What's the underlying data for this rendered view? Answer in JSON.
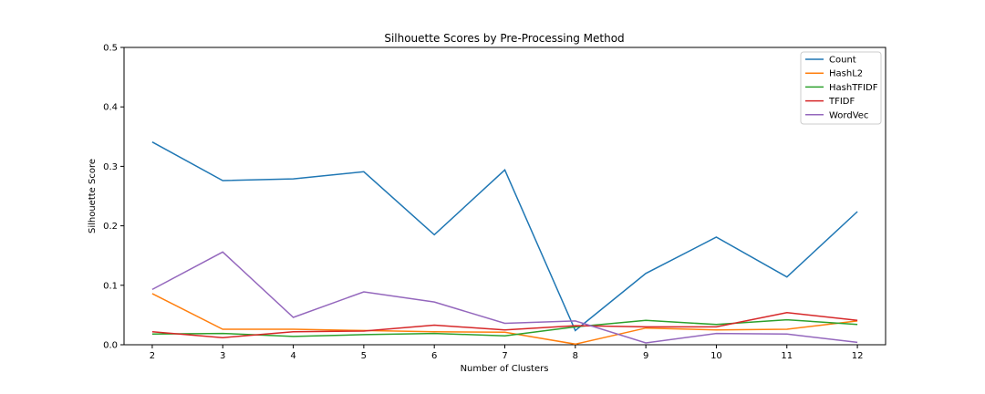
{
  "chart_data": {
    "type": "line",
    "title": "Silhouette Scores by Pre-Processing Method",
    "xlabel": "Number of Clusters",
    "ylabel": "Silhouette Score",
    "x": [
      2,
      3,
      4,
      5,
      6,
      7,
      8,
      9,
      10,
      11,
      12
    ],
    "xlim": [
      1.6,
      12.4
    ],
    "ylim": [
      0.0,
      0.5
    ],
    "yticks": [
      "0.0",
      "0.1",
      "0.2",
      "0.3",
      "0.4",
      "0.5"
    ],
    "xticks": [
      "2",
      "3",
      "4",
      "5",
      "6",
      "7",
      "8",
      "9",
      "10",
      "11",
      "12"
    ],
    "grid": false,
    "legend_position": "top-right",
    "series": [
      {
        "name": "Count",
        "color": "#1f77b4",
        "values": [
          0.341,
          0.276,
          0.279,
          0.291,
          0.185,
          0.294,
          0.024,
          0.12,
          0.181,
          0.114,
          0.224
        ]
      },
      {
        "name": "HashL2",
        "color": "#ff7f0e",
        "values": [
          0.086,
          0.026,
          0.026,
          0.024,
          0.022,
          0.021,
          0.001,
          0.028,
          0.025,
          0.026,
          0.04
        ]
      },
      {
        "name": "HashTFIDF",
        "color": "#2ca02c",
        "values": [
          0.018,
          0.019,
          0.014,
          0.017,
          0.019,
          0.015,
          0.03,
          0.041,
          0.034,
          0.042,
          0.034
        ]
      },
      {
        "name": "TFIDF",
        "color": "#d62728",
        "values": [
          0.022,
          0.012,
          0.022,
          0.023,
          0.033,
          0.025,
          0.032,
          0.03,
          0.03,
          0.054,
          0.041
        ]
      },
      {
        "name": "WordVec",
        "color": "#9467bd",
        "values": [
          0.093,
          0.156,
          0.046,
          0.089,
          0.072,
          0.036,
          0.04,
          0.003,
          0.019,
          0.018,
          0.004
        ]
      }
    ]
  }
}
